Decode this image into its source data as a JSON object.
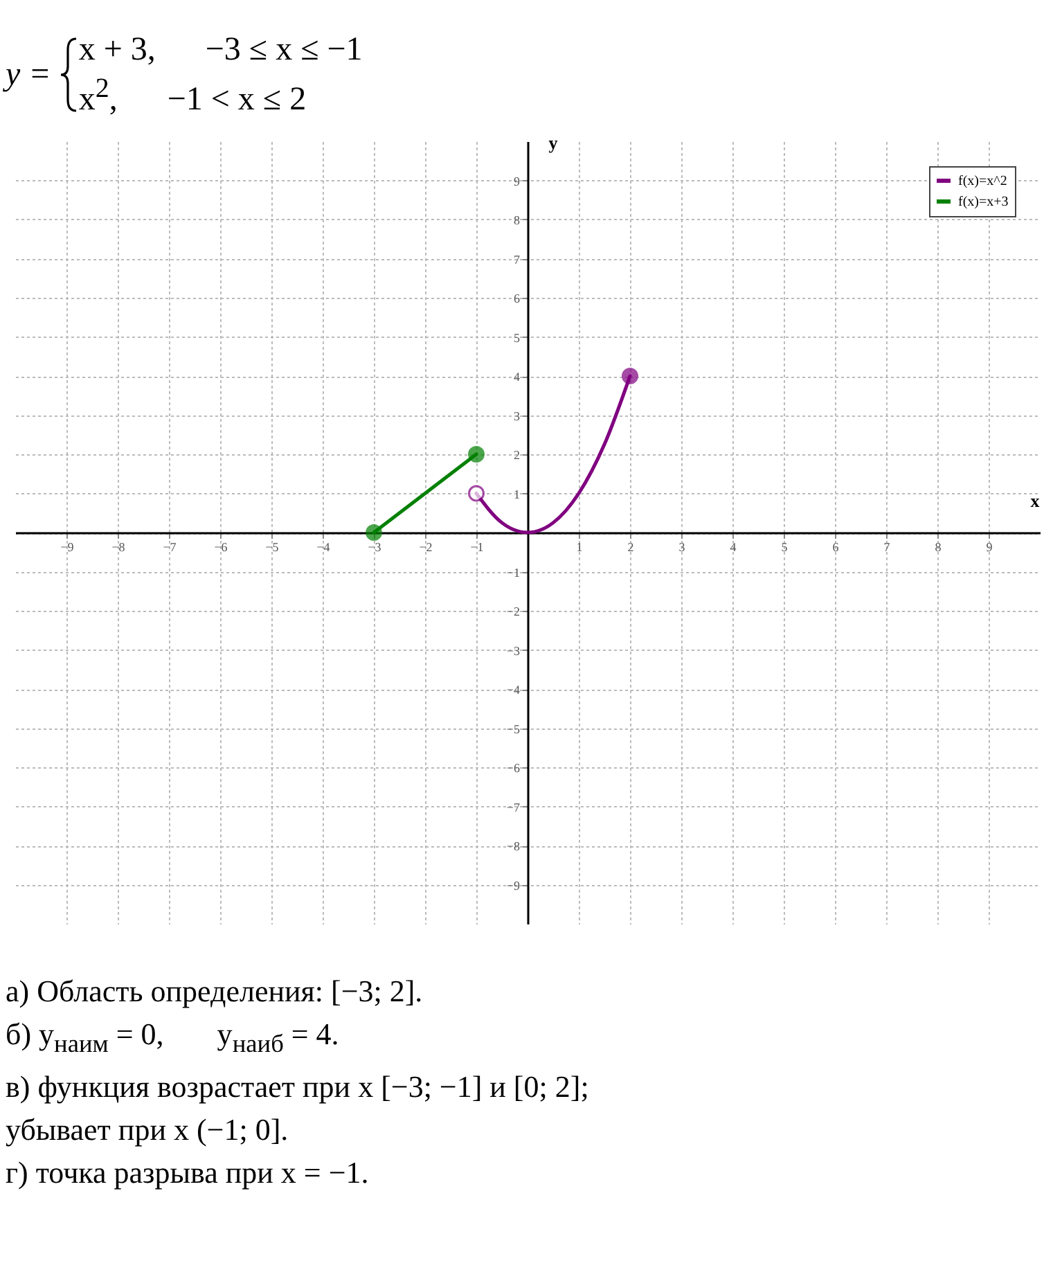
{
  "chart_data": {
    "type": "line",
    "title": "y =",
    "xlabel": "x",
    "ylabel": "y",
    "xlim": [
      -10,
      10
    ],
    "ylim": [
      -10,
      10
    ],
    "xticks": [
      -9,
      -8,
      -7,
      -6,
      -5,
      -4,
      -3,
      -2,
      -1,
      {
        "value": 0,
        "label": null
      },
      1,
      2,
      3,
      4,
      5,
      6,
      7,
      8,
      9
    ],
    "yticks": [
      -9,
      -8,
      -7,
      -6,
      -5,
      -4,
      -3,
      -2,
      -1,
      {
        "value": 0,
        "label": null
      },
      1,
      2,
      3,
      4,
      5,
      6,
      7,
      8,
      9
    ],
    "grid": true,
    "legend": "top right",
    "line_style": "solid",
    "series": [
      {
        "name": "f(x)=x^2",
        "color": "#800080",
        "type": "line",
        "x": [
          -1,
          -0.5,
          0,
          0.5,
          1,
          1.5,
          2
        ],
        "values": [
          1,
          0.25,
          0,
          0.25,
          1,
          2.25,
          4
        ]
      },
      {
        "name": "f(x)=x+3",
        "color": "#008000",
        "type": "line",
        "x": [
          -3,
          -1
        ],
        "values": [
          0,
          2
        ]
      },
      {
        "color": "#800080",
        "type": "scatter",
        "marker": "circle",
        "x": [
          2
        ],
        "values": [
          4
        ]
      },
      {
        "color": "#ffffff",
        "type": "scatter",
        "marker": "circle",
        "x": [
          -1
        ],
        "values": [
          1
        ]
      },
      {
        "color": "#008000",
        "type": "scatter",
        "marker": "circle",
        "x": [
          -3,
          -1
        ],
        "values": [
          0,
          2
        ]
      }
    ],
    "annotations": [
      "x + 3,      −3 ≤ x ≤ −1",
      "x$^{2}$,      −1 < x ≤ 2",
      "а) Область определения: [−3; 2].",
      "б) y$_{наим}$ = 0,       y$_{наиб}$ = 4.",
      "в) функция возрастает при x [−3; −1] и [0; 2];",
      "убывает при x (−1; 0].",
      "г) точка разрыва при x = −1."
    ]
  }
}
